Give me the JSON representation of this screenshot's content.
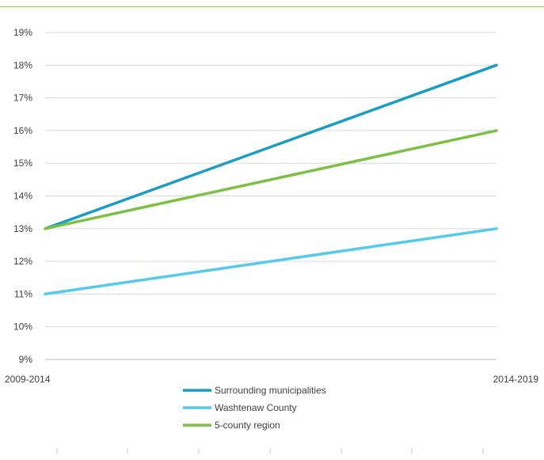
{
  "chart_data": {
    "type": "line",
    "title": "",
    "xlabel": "",
    "ylabel": "",
    "categories": [
      "2009-2014",
      "2014-2019"
    ],
    "ylim": [
      9,
      19
    ],
    "yticks": [
      "9%",
      "10%",
      "11%",
      "12%",
      "13%",
      "14%",
      "15%",
      "16%",
      "17%",
      "18%",
      "19%"
    ],
    "grid": true,
    "legend_position": "bottom",
    "series": [
      {
        "name": "Surrounding municipalities",
        "values": [
          13,
          18
        ],
        "color": "#1b9bc6"
      },
      {
        "name": "Washtenaw County",
        "values": [
          11,
          13
        ],
        "color": "#56c9ee"
      },
      {
        "name": "5-county region",
        "values": [
          13,
          16
        ],
        "color": "#7ac143"
      }
    ]
  }
}
